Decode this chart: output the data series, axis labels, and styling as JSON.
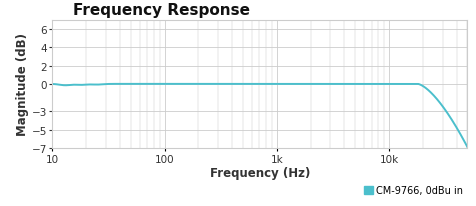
{
  "title": "Frequency Response",
  "xlabel": "Frequency (Hz)",
  "ylabel": "Magnitude (dB)",
  "ylim": [
    -7,
    7
  ],
  "yticks": [
    -7,
    -5,
    -3,
    0,
    2,
    4,
    6
  ],
  "xlim_log": [
    10,
    50000
  ],
  "line_color": "#4bbfcc",
  "line_width": 1.4,
  "legend_label": "CM-9766, 0dBu in",
  "legend_color": "#4bbfcc",
  "title_fontsize": 11,
  "axis_label_fontsize": 8.5,
  "tick_fontsize": 7.5,
  "grid_color": "#cccccc",
  "bg_color": "#ffffff",
  "title_color": "#111111",
  "axis_label_color": "#333333",
  "tick_color": "#333333",
  "xtick_positions": [
    10,
    100,
    1000,
    10000
  ],
  "xtick_labels": [
    "10",
    "100",
    "1k",
    "10k"
  ],
  "rolloff_start": 18000,
  "rolloff_end": 50000,
  "rolloff_end_db": -6.9
}
